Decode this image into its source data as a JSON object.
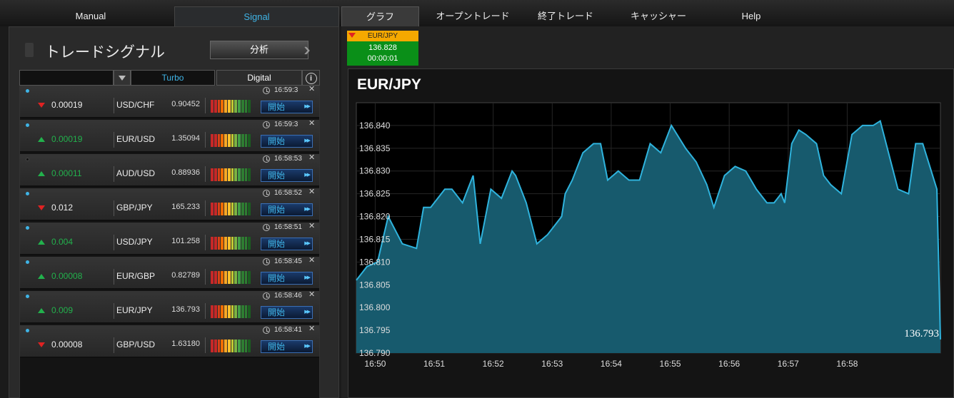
{
  "nav": {
    "left_tabs": [
      {
        "label": "Manual"
      },
      {
        "label": "Signal"
      }
    ],
    "right_tabs": [
      {
        "label": "グラフ"
      },
      {
        "label": "オープントレード"
      },
      {
        "label": "終了トレード"
      },
      {
        "label": "キャッシャー"
      },
      {
        "label": "Help"
      }
    ]
  },
  "signals": {
    "title": "トレードシグナル",
    "analyze_label": "分析",
    "filter": {
      "selected": "",
      "tabs": [
        {
          "label": "Turbo"
        },
        {
          "label": "Digital"
        }
      ]
    },
    "rows": [
      {
        "direction": "down",
        "change": "0.00019",
        "pair": "USD/CHF",
        "price": "0.90452",
        "time": "16:59:3",
        "dot": "blue",
        "open_label": "開始"
      },
      {
        "direction": "up",
        "change": "0.00019",
        "pair": "EUR/USD",
        "price": "1.35094",
        "time": "16:59:3",
        "dot": "blue",
        "open_label": "開始"
      },
      {
        "direction": "up",
        "change": "0.00011",
        "pair": "AUD/USD",
        "price": "0.88936",
        "time": "16:58:53",
        "dot": "black",
        "open_label": "開始"
      },
      {
        "direction": "down",
        "change": "0.012",
        "pair": "GBP/JPY",
        "price": "165.233",
        "time": "16:58:52",
        "dot": "blue",
        "open_label": "開始"
      },
      {
        "direction": "up",
        "change": "0.004",
        "pair": "USD/JPY",
        "price": "101.258",
        "time": "16:58:51",
        "dot": "blue",
        "open_label": "開始"
      },
      {
        "direction": "up",
        "change": "0.00008",
        "pair": "EUR/GBP",
        "price": "0.82789",
        "time": "16:58:45",
        "dot": "blue",
        "open_label": "開始"
      },
      {
        "direction": "up",
        "change": "0.009",
        "pair": "EUR/JPY",
        "price": "136.793",
        "time": "16:58:46",
        "dot": "blue",
        "open_label": "開始"
      },
      {
        "direction": "down",
        "change": "0.00008",
        "pair": "GBP/USD",
        "price": "1.63180",
        "time": "16:58:41",
        "dot": "blue",
        "open_label": "開始"
      }
    ]
  },
  "quick_trade": {
    "pair": "EUR/JPY",
    "price": "136.828",
    "timer": "00:00:01"
  },
  "chart_title": "EUR/JPY",
  "chart_data": {
    "type": "area",
    "title": "EUR/JPY",
    "xlabel": "",
    "ylabel": "",
    "current_price_label": "136.793",
    "ylim": [
      136.79,
      136.845
    ],
    "xlim": [
      16.828,
      16.993
    ],
    "y_ticks": [
      "136.840",
      "136.835",
      "136.830",
      "136.825",
      "136.820",
      "136.815",
      "136.810",
      "136.805",
      "136.800",
      "136.795",
      "136.790"
    ],
    "x_ticks": [
      "16:50",
      "16:51",
      "16:52",
      "16:53",
      "16:54",
      "16:55",
      "16:56",
      "16:57",
      "16:58"
    ],
    "grid": true,
    "colors": {
      "line": "#2fb3dd",
      "fill": "#175a6d"
    },
    "x": [
      16.828,
      16.831,
      16.834,
      16.837,
      16.841,
      16.845,
      16.847,
      16.849,
      16.853,
      16.855,
      16.858,
      16.861,
      16.863,
      16.866,
      16.869,
      16.872,
      16.873,
      16.876,
      16.879,
      16.882,
      16.883,
      16.886,
      16.887,
      16.889,
      16.892,
      16.895,
      16.897,
      16.899,
      16.902,
      16.905,
      16.908,
      16.911,
      16.914,
      16.917,
      16.921,
      16.924,
      16.927,
      16.929,
      16.932,
      16.935,
      16.938,
      16.941,
      16.944,
      16.946,
      16.948,
      16.949,
      16.951,
      16.953,
      16.955,
      16.958,
      16.96,
      16.962,
      16.965,
      16.968,
      16.971,
      16.974,
      16.976,
      16.978,
      16.981,
      16.984,
      16.986,
      16.988,
      16.99,
      16.992,
      16.993
    ],
    "y": [
      136.806,
      136.809,
      136.81,
      136.82,
      136.814,
      136.813,
      136.822,
      136.822,
      136.826,
      136.826,
      136.823,
      136.829,
      136.814,
      136.826,
      136.824,
      136.83,
      136.829,
      136.823,
      136.814,
      136.816,
      136.817,
      136.82,
      136.825,
      136.828,
      136.834,
      136.836,
      136.836,
      136.828,
      136.83,
      136.828,
      136.828,
      136.836,
      136.834,
      136.84,
      136.835,
      136.832,
      136.827,
      136.822,
      136.829,
      136.831,
      136.83,
      136.826,
      136.823,
      136.823,
      136.825,
      136.823,
      136.836,
      136.839,
      136.838,
      136.836,
      136.829,
      136.827,
      136.825,
      136.838,
      136.84,
      136.84,
      136.841,
      136.835,
      136.826,
      136.825,
      136.836,
      136.836,
      136.831,
      136.826,
      136.793
    ]
  }
}
